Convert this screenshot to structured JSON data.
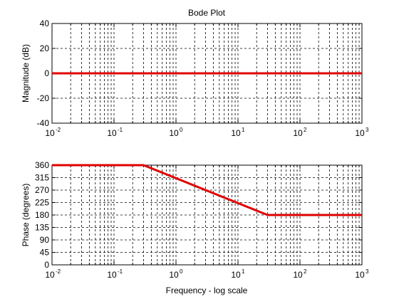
{
  "figure_title": "Bode Plot",
  "chart_data": [
    {
      "type": "line",
      "panel": "magnitude",
      "title": "Bode Plot",
      "xlabel": "",
      "ylabel": "Magnitude (dB)",
      "x_scale": "log",
      "xlim": [
        0.01,
        1000
      ],
      "ylim": [
        -40,
        40
      ],
      "grid": true,
      "x_ticks": [
        {
          "base": "10",
          "exp": "-2"
        },
        {
          "base": "10",
          "exp": "-1"
        },
        {
          "base": "10",
          "exp": "0"
        },
        {
          "base": "10",
          "exp": "1"
        },
        {
          "base": "10",
          "exp": "2"
        },
        {
          "base": "10",
          "exp": "3"
        }
      ],
      "y_ticks": [
        "-40",
        "-20",
        "0",
        "20",
        "40"
      ],
      "series": [
        {
          "color": "#e00000",
          "x": [
            0.01,
            1000
          ],
          "y": [
            0,
            0
          ]
        }
      ]
    },
    {
      "type": "line",
      "panel": "phase",
      "title": "",
      "xlabel": "Frequency - log scale",
      "ylabel": "Phase (degrees)",
      "x_scale": "log",
      "xlim": [
        0.01,
        1000
      ],
      "ylim": [
        0,
        360
      ],
      "grid": true,
      "x_ticks": [
        {
          "base": "10",
          "exp": "-2"
        },
        {
          "base": "10",
          "exp": "-1"
        },
        {
          "base": "10",
          "exp": "0"
        },
        {
          "base": "10",
          "exp": "1"
        },
        {
          "base": "10",
          "exp": "2"
        },
        {
          "base": "10",
          "exp": "3"
        }
      ],
      "y_ticks": [
        "0",
        "45",
        "90",
        "135",
        "180",
        "225",
        "270",
        "315",
        "360"
      ],
      "series": [
        {
          "color": "#e00000",
          "x": [
            0.01,
            0.3,
            30,
            1000
          ],
          "y": [
            360,
            360,
            180,
            180
          ]
        }
      ]
    }
  ]
}
